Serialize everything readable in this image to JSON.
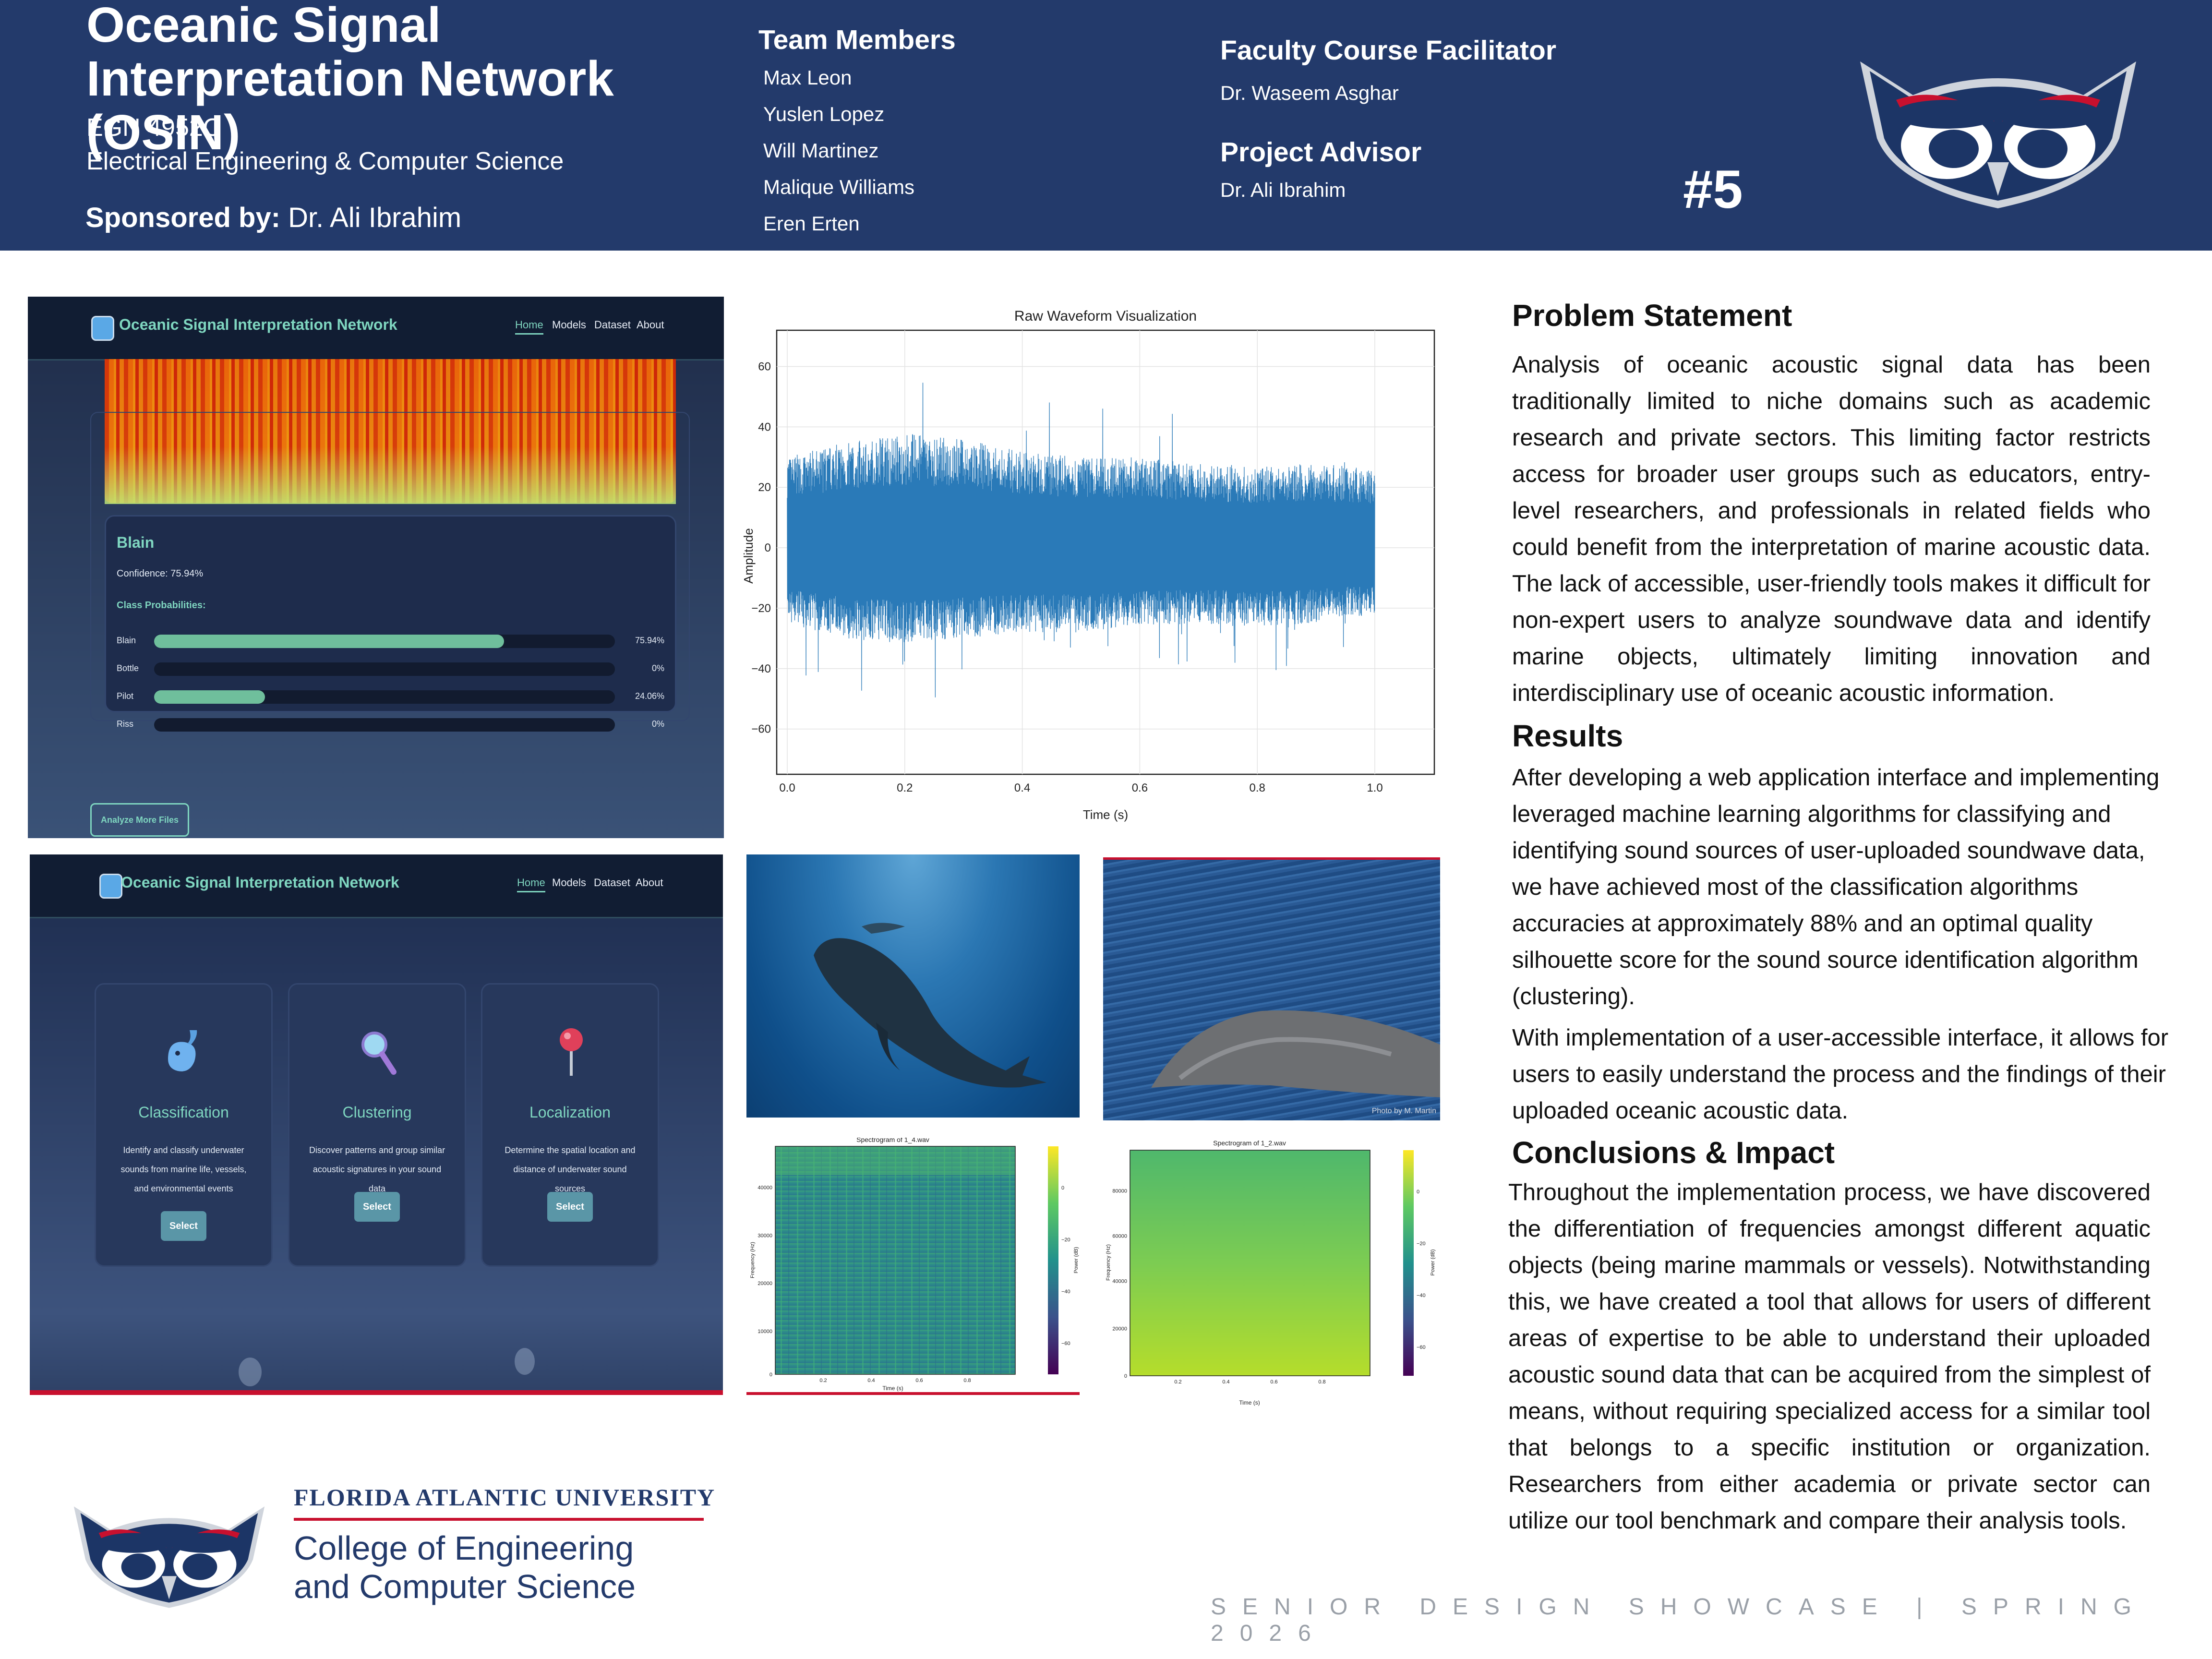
{
  "header": {
    "title": "Oceanic Signal Interpretation Network (OSIN)",
    "course": "EGN 4952C",
    "department": "Electrical Engineering & Computer Science",
    "sponsor_label": "Sponsored by:",
    "sponsor_name": " Dr. Ali Ibrahim",
    "team_heading": "Team Members",
    "team": [
      "Max Leon",
      "Yuslen Lopez",
      "Will Martinez",
      "Malique Williams",
      "Eren Erten"
    ],
    "facilitator_heading": "Faculty Course Facilitator",
    "facilitator": "Dr. Waseem Asghar",
    "advisor_heading": "Project Advisor",
    "advisor": "Dr. Ali Ibrahim",
    "poster_number": "#5"
  },
  "app": {
    "brand": "Oceanic Signal Interpretation Network",
    "nav": [
      "Home",
      "Models",
      "Dataset",
      "About"
    ],
    "result": {
      "class_name": "Blain",
      "confidence": "Confidence: 75.94%",
      "probs_heading": "Class Probabilities:",
      "probs": [
        {
          "label": "Blain",
          "value": "75.94%",
          "fraction": 0.7594
        },
        {
          "label": "Bottle",
          "value": "0%",
          "fraction": 0
        },
        {
          "label": "Pilot",
          "value": "24.06%",
          "fraction": 0.2406
        },
        {
          "label": "Riss",
          "value": "0%",
          "fraction": 0
        }
      ],
      "analyze_button": "Analyze More Files"
    },
    "cards": [
      {
        "title": "Classification",
        "desc": "Identify and classify underwater sounds from marine life, vessels, and environmental events",
        "button": "Select"
      },
      {
        "title": "Clustering",
        "desc": "Discover patterns and group similar acoustic signatures in your sound data",
        "button": "Select"
      },
      {
        "title": "Localization",
        "desc": "Determine the spatial location and distance of underwater sound sources",
        "button": "Select"
      }
    ]
  },
  "chart_data": [
    {
      "type": "line",
      "title": "Raw Waveform Visualization",
      "xlabel": "Time (s)",
      "ylabel": "Amplitude",
      "xlim": [
        0,
        1.0
      ],
      "ylim": [
        -75,
        72
      ],
      "xticks": [
        "0.0",
        "0.2",
        "0.4",
        "0.6",
        "0.8",
        "1.0"
      ],
      "yticks": [
        "60",
        "40",
        "20",
        "0",
        "−20",
        "−40",
        "−60"
      ],
      "grid": true,
      "color": "#2a7ab8",
      "envelope": {
        "x": [
          0.0,
          0.1,
          0.2,
          0.3,
          0.4,
          0.5,
          0.6,
          0.7,
          0.8,
          0.9,
          1.0
        ],
        "upper": [
          30,
          35,
          38,
          36,
          32,
          30,
          30,
          28,
          27,
          28,
          26
        ],
        "lower": [
          -25,
          -30,
          -32,
          -30,
          -28,
          -28,
          -26,
          -25,
          -26,
          -25,
          -22
        ]
      }
    },
    {
      "type": "heatmap",
      "title": "Spectrogram of 1_4.wav",
      "xlabel": "Time (s)",
      "ylabel": "Frequency (Hz)",
      "colorbar_label": "Power (dB)",
      "xticks": [
        "0.2",
        "0.4",
        "0.6",
        "0.8"
      ],
      "yticks": [
        "40000",
        "30000",
        "20000",
        "10000",
        "0"
      ],
      "cbar_ticks": [
        "0",
        "−20",
        "−40",
        "−60"
      ]
    },
    {
      "type": "heatmap",
      "title": "Spectrogram of 1_2.wav",
      "xlabel": "Time (s)",
      "ylabel": "Frequency (Hz)",
      "colorbar_label": "Power (dB)",
      "xticks": [
        "0.2",
        "0.4",
        "0.6",
        "0.8"
      ],
      "yticks": [
        "80000",
        "60000",
        "40000",
        "20000",
        "0"
      ],
      "cbar_ticks": [
        "0",
        "−20",
        "−40",
        "−60"
      ]
    }
  ],
  "photo_credit": "Photo by M. Martin",
  "problem": {
    "heading": "Problem Statement",
    "text": "Analysis of oceanic acoustic signal data has been traditionally limited to niche domains such as academic research and private sectors. This limiting factor restricts access for broader user groups such as educators, entry-level researchers, and professionals in related fields who could benefit from the interpretation of marine acoustic data. The lack of accessible, user-friendly tools makes it difficult for non-expert users to  analyze soundwave data and identify marine objects, ultimately limiting innovation and interdisciplinary use of oceanic acoustic information."
  },
  "results": {
    "heading": "Results",
    "text1": "After developing a web application interface and implementing leveraged machine learning algorithms for classifying and identifying sound sources of user-uploaded soundwave data, we have achieved most of the classification algorithms accuracies at approximately 88% and an optimal quality silhouette score for the sound source identification algorithm (clustering).",
    "text2": "With implementation of a user-accessible interface, it allows for users to easily understand the process and the findings of their uploaded oceanic acoustic data."
  },
  "conclusions": {
    "heading": "Conclusions & Impact",
    "text": "Throughout the implementation process, we have discovered the differentiation of frequencies amongst different aquatic objects (being marine mammals or vessels). Notwithstanding this, we have created a tool that allows for users of different areas of expertise to be able to understand their uploaded acoustic sound data that can be acquired from the simplest of means, without requiring specialized access for a similar tool that belongs to a specific institution or organization. Researchers from either academia or private sector can utilize our tool benchmark and compare their analysis tools."
  },
  "footer": {
    "university": "FLORIDA ATLANTIC UNIVERSITY",
    "college_line1": "College of Engineering",
    "college_line2": "and Computer Science",
    "showcase": "SENIOR DESIGN SHOWCASE | SPRING 2026"
  },
  "colors": {
    "navy": "#233a6b",
    "red": "#c8102e",
    "teal": "#7fd6c0"
  }
}
